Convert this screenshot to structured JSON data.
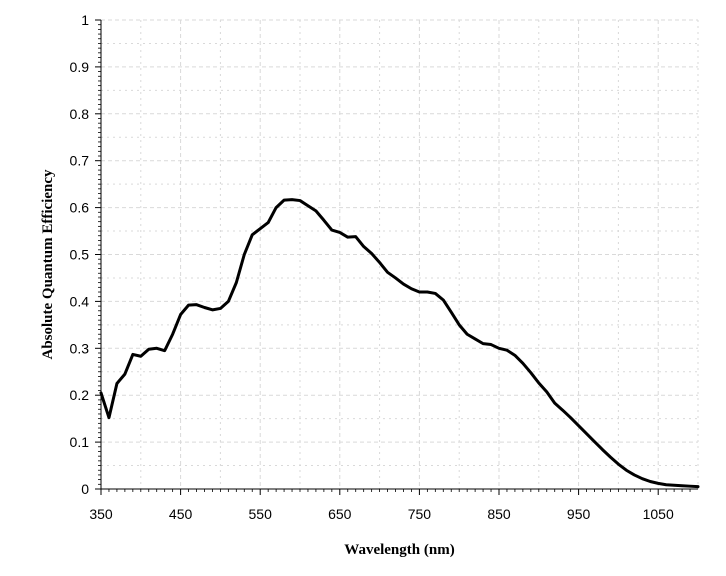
{
  "chart_data": {
    "type": "line",
    "title": "",
    "xlabel": "Wavelength (nm)",
    "ylabel": "Absolute Quantum Efficiency",
    "xlim": [
      350,
      1100
    ],
    "ylim": [
      0,
      1
    ],
    "x_ticks": [
      "350",
      "450",
      "550",
      "650",
      "750",
      "850",
      "950",
      "1050"
    ],
    "y_ticks": [
      "0",
      "0.1",
      "0.2",
      "0.3",
      "0.4",
      "0.5",
      "0.6",
      "0.7",
      "0.8",
      "0.9",
      "1"
    ],
    "grid": true,
    "legend": "none",
    "line_color": "#000000",
    "grid_color": "#d9d9d9",
    "series": [
      {
        "x": [
          350,
          360,
          370,
          380,
          390,
          400,
          410,
          420,
          430,
          440,
          450,
          460,
          470,
          480,
          490,
          500,
          510,
          520,
          530,
          540,
          550,
          560,
          570,
          580,
          590,
          600,
          610,
          620,
          630,
          640,
          650,
          660,
          670,
          680,
          690,
          700,
          710,
          720,
          730,
          740,
          750,
          760,
          770,
          780,
          790,
          800,
          810,
          820,
          830,
          840,
          850,
          860,
          870,
          880,
          890,
          900,
          910,
          920,
          930,
          940,
          950,
          960,
          970,
          980,
          990,
          1000,
          1010,
          1020,
          1030,
          1040,
          1050,
          1060,
          1070,
          1080,
          1090,
          1100
        ],
        "y": [
          0.205,
          0.152,
          0.225,
          0.245,
          0.287,
          0.283,
          0.298,
          0.3,
          0.295,
          0.33,
          0.372,
          0.392,
          0.393,
          0.387,
          0.382,
          0.385,
          0.4,
          0.44,
          0.5,
          0.542,
          0.555,
          0.568,
          0.6,
          0.616,
          0.617,
          0.615,
          0.604,
          0.593,
          0.573,
          0.552,
          0.547,
          0.537,
          0.538,
          0.517,
          0.502,
          0.483,
          0.462,
          0.45,
          0.437,
          0.427,
          0.42,
          0.42,
          0.417,
          0.403,
          0.377,
          0.35,
          0.33,
          0.32,
          0.31,
          0.308,
          0.3,
          0.296,
          0.285,
          0.268,
          0.248,
          0.226,
          0.207,
          0.183,
          0.168,
          0.152,
          0.135,
          0.118,
          0.101,
          0.084,
          0.068,
          0.053,
          0.04,
          0.03,
          0.022,
          0.016,
          0.012,
          0.009,
          0.008,
          0.007,
          0.006,
          0.005
        ]
      }
    ]
  }
}
